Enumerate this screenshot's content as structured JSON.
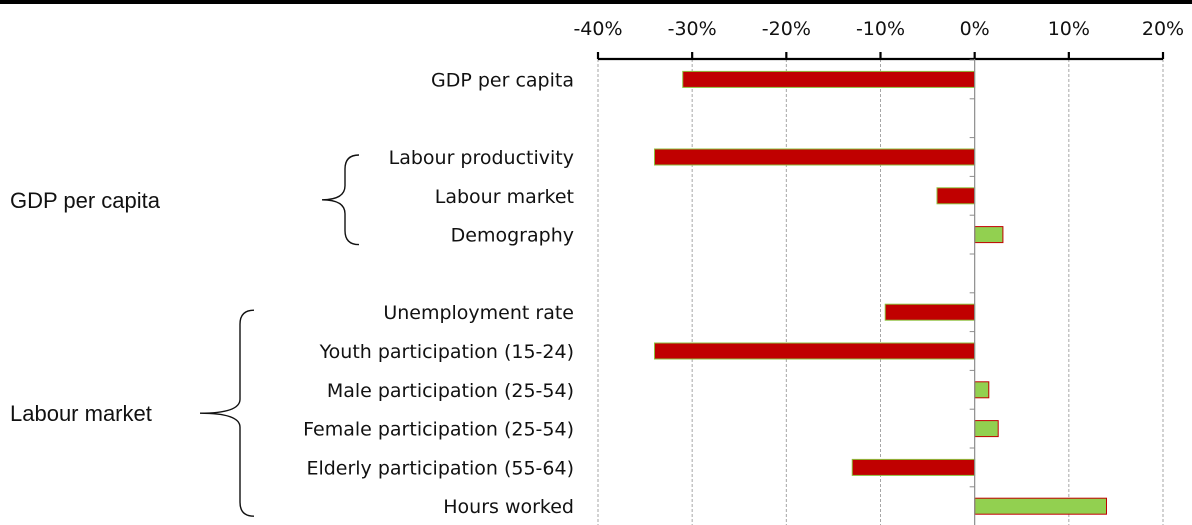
{
  "chart_data": {
    "type": "bar",
    "orientation": "horizontal",
    "title": "",
    "xlabel": "",
    "ylabel": "",
    "xlim": [
      -40,
      20
    ],
    "x_ticks": [
      -40,
      -30,
      -20,
      -10,
      0,
      10,
      20
    ],
    "x_tick_labels": [
      "-40%",
      "-30%",
      "-20%",
      "-10%",
      "0%",
      "10%",
      "20%"
    ],
    "tick_position": "top",
    "grid": "vertical dashed",
    "legend": "none",
    "categories": [
      "GDP per capita",
      "",
      "Labour productivity",
      "Labour market",
      "Demography",
      "",
      "Unemployment rate",
      "Youth participation (15-24)",
      "Male participation (25-54)",
      "Female participation (25-54)",
      "Elderly participation (55-64)",
      "Hours worked"
    ],
    "values": [
      -31,
      null,
      -34,
      -4,
      3,
      null,
      -9.5,
      -34,
      1.5,
      2.5,
      -13,
      14
    ],
    "colors": {
      "negative_fill": "#c00000",
      "negative_stroke": "#8dbe3c",
      "positive_fill": "#92d050",
      "positive_stroke": "#c00000",
      "axis": "#000000",
      "grid": "#a6a6a6"
    },
    "groups": [
      {
        "label": "GDP per capita",
        "from": "Labour productivity",
        "to": "Demography"
      },
      {
        "label": "Labour market",
        "from": "Unemployment rate",
        "to": "Hours worked"
      }
    ]
  }
}
